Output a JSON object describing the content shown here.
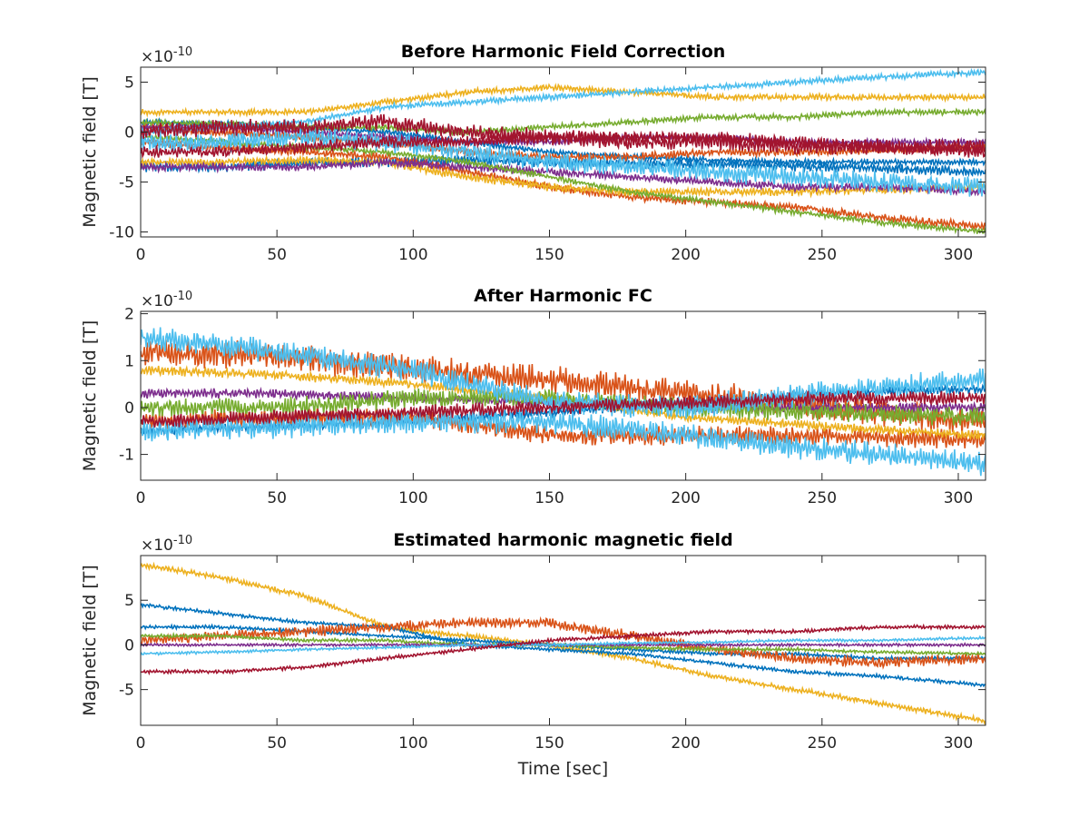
{
  "chart_data": [
    {
      "type": "line",
      "title": "Before Harmonic Field Correction",
      "ylabel": "Magnetic field [T]",
      "xlabel": "",
      "exponent_label": "×10",
      "exponent_power": "-10",
      "xlim": [
        0,
        310
      ],
      "ylim": [
        -10.5,
        6.5
      ],
      "xticks": [
        "0",
        "50",
        "100",
        "150",
        "200",
        "250",
        "300"
      ],
      "xtick_values": [
        0,
        50,
        100,
        150,
        200,
        250,
        300
      ],
      "yticks": [
        "5",
        "0",
        "-5",
        "-10"
      ],
      "ytick_values": [
        5,
        0,
        -5,
        -10
      ],
      "grid": false,
      "series": [
        {
          "color": "#0072BD",
          "x": [
            0,
            30,
            60,
            90,
            120,
            150,
            180,
            210,
            240,
            270,
            310
          ],
          "values": [
            -3.5,
            -3.5,
            -3.0,
            -3.0,
            -2.8,
            -3.0,
            -3.2,
            -3.2,
            -3.4,
            -3.6,
            -4.0
          ],
          "noise": 0.5
        },
        {
          "color": "#0072BD",
          "x": [
            0,
            30,
            60,
            90,
            120,
            150,
            180,
            210,
            240,
            270,
            310
          ],
          "values": [
            1.0,
            0.8,
            0.5,
            0.0,
            -1.0,
            -2.0,
            -2.5,
            -2.8,
            -3.0,
            -3.0,
            -3.0
          ],
          "noise": 0.3
        },
        {
          "color": "#D95319",
          "x": [
            0,
            30,
            60,
            90,
            120,
            150,
            180,
            210,
            240,
            270,
            310
          ],
          "values": [
            -1.0,
            -1.5,
            -2.0,
            -2.5,
            -4.0,
            -5.5,
            -6.5,
            -7.0,
            -7.5,
            -8.5,
            -9.5
          ],
          "noise": 0.4
        },
        {
          "color": "#D95319",
          "x": [
            0,
            30,
            60,
            90,
            120,
            150,
            180,
            210,
            240,
            270,
            310
          ],
          "values": [
            0.5,
            0.0,
            -0.5,
            -1.0,
            -2.0,
            -2.5,
            -2.5,
            -2.0,
            -2.0,
            -1.8,
            -1.5
          ],
          "noise": 0.4
        },
        {
          "color": "#EDB120",
          "x": [
            0,
            30,
            60,
            90,
            120,
            150,
            180,
            210,
            240,
            270,
            310
          ],
          "values": [
            2.0,
            2.0,
            2.0,
            3.0,
            4.0,
            4.5,
            4.0,
            3.5,
            3.5,
            3.5,
            3.5
          ],
          "noise": 0.3
        },
        {
          "color": "#EDB120",
          "x": [
            0,
            30,
            60,
            90,
            120,
            150,
            180,
            210,
            240,
            270,
            310
          ],
          "values": [
            -3.0,
            -3.0,
            -2.8,
            -3.0,
            -4.5,
            -5.5,
            -6.0,
            -6.0,
            -6.0,
            -5.8,
            -5.5
          ],
          "noise": 0.4
        },
        {
          "color": "#7E2F8E",
          "x": [
            0,
            30,
            60,
            90,
            120,
            150,
            180,
            210,
            240,
            270,
            310
          ],
          "values": [
            -3.5,
            -3.5,
            -3.5,
            -3.0,
            -3.5,
            -4.0,
            -4.5,
            -5.0,
            -5.5,
            -5.5,
            -6.0
          ],
          "noise": 0.4
        },
        {
          "color": "#7E2F8E",
          "x": [
            0,
            30,
            60,
            90,
            120,
            150,
            180,
            210,
            240,
            270,
            310
          ],
          "values": [
            0.5,
            0.5,
            0.0,
            -0.5,
            -1.0,
            -1.0,
            -0.5,
            -0.5,
            -1.0,
            -1.0,
            -1.0
          ],
          "noise": 0.3
        },
        {
          "color": "#77AC30",
          "x": [
            0,
            30,
            60,
            90,
            120,
            150,
            180,
            210,
            240,
            270,
            310
          ],
          "values": [
            -0.5,
            -1.0,
            -1.5,
            -2.0,
            -3.0,
            -4.5,
            -6.0,
            -7.0,
            -8.0,
            -9.0,
            -10.0
          ],
          "noise": 0.3
        },
        {
          "color": "#77AC30",
          "x": [
            0,
            30,
            60,
            90,
            120,
            150,
            180,
            210,
            240,
            270,
            310
          ],
          "values": [
            1.0,
            0.8,
            0.5,
            0.5,
            0.0,
            0.5,
            1.0,
            1.5,
            1.5,
            2.0,
            2.0
          ],
          "noise": 0.3
        },
        {
          "color": "#4DBEEE",
          "x": [
            0,
            30,
            60,
            90,
            120,
            150,
            180,
            210,
            240,
            270,
            310
          ],
          "values": [
            0.0,
            0.5,
            1.0,
            2.5,
            3.0,
            3.5,
            4.0,
            4.5,
            5.0,
            5.5,
            6.0
          ],
          "noise": 0.3
        },
        {
          "color": "#4DBEEE",
          "x": [
            0,
            30,
            60,
            90,
            120,
            150,
            180,
            210,
            240,
            270,
            310
          ],
          "values": [
            -1.0,
            -1.0,
            -0.5,
            -1.0,
            -2.0,
            -3.0,
            -3.5,
            -4.0,
            -4.5,
            -5.0,
            -5.5
          ],
          "noise": 1.0
        },
        {
          "color": "#A2142F",
          "x": [
            0,
            30,
            60,
            90,
            120,
            150,
            180,
            210,
            240,
            270,
            310
          ],
          "values": [
            0.0,
            0.5,
            0.5,
            1.0,
            0.0,
            -0.5,
            -1.0,
            -1.0,
            -1.5,
            -1.5,
            -1.5
          ],
          "noise": 0.8
        },
        {
          "color": "#A2142F",
          "x": [
            0,
            30,
            60,
            90,
            120,
            150,
            180,
            210,
            240,
            270,
            310
          ],
          "values": [
            -2.0,
            -2.0,
            -1.5,
            -1.0,
            -1.0,
            -0.5,
            -0.5,
            -0.5,
            -1.0,
            -1.5,
            -2.0
          ],
          "noise": 0.6
        }
      ]
    },
    {
      "type": "line",
      "title": "After Harmonic FC",
      "ylabel": "Magnetic field [T]",
      "xlabel": "",
      "exponent_label": "×10",
      "exponent_power": "-10",
      "xlim": [
        0,
        310
      ],
      "ylim": [
        -1.55,
        2.05
      ],
      "xticks": [
        "0",
        "50",
        "100",
        "150",
        "200",
        "250",
        "300"
      ],
      "xtick_values": [
        0,
        50,
        100,
        150,
        200,
        250,
        300
      ],
      "yticks": [
        "2",
        "1",
        "0",
        "-1"
      ],
      "ytick_values": [
        2,
        1,
        0,
        -1
      ],
      "grid": false,
      "series": [
        {
          "color": "#0072BD",
          "x": [
            0,
            50,
            100,
            150,
            200,
            250,
            310
          ],
          "values": [
            -0.5,
            -0.4,
            -0.3,
            -0.1,
            0.1,
            0.3,
            0.4
          ],
          "noise": 0.1
        },
        {
          "color": "#D95319",
          "x": [
            0,
            50,
            100,
            150,
            200,
            250,
            310
          ],
          "values": [
            1.2,
            1.1,
            0.8,
            0.6,
            0.3,
            0.0,
            -0.3
          ],
          "noise": 0.3
        },
        {
          "color": "#D95319",
          "x": [
            0,
            50,
            100,
            150,
            200,
            250,
            310
          ],
          "values": [
            -0.3,
            -0.2,
            -0.2,
            -0.6,
            -0.6,
            -0.6,
            -0.7
          ],
          "noise": 0.2
        },
        {
          "color": "#EDB120",
          "x": [
            0,
            50,
            100,
            150,
            200,
            250,
            310
          ],
          "values": [
            0.8,
            0.7,
            0.5,
            0.2,
            -0.2,
            -0.4,
            -0.6
          ],
          "noise": 0.1
        },
        {
          "color": "#7E2F8E",
          "x": [
            0,
            50,
            100,
            150,
            200,
            250,
            310
          ],
          "values": [
            0.3,
            0.3,
            0.2,
            0.1,
            0.0,
            0.0,
            0.0
          ],
          "noise": 0.1
        },
        {
          "color": "#77AC30",
          "x": [
            0,
            50,
            100,
            150,
            200,
            250,
            310
          ],
          "values": [
            0.0,
            0.0,
            0.2,
            0.2,
            0.0,
            -0.1,
            -0.2
          ],
          "noise": 0.2
        },
        {
          "color": "#4DBEEE",
          "x": [
            0,
            50,
            100,
            150,
            200,
            250,
            310
          ],
          "values": [
            1.5,
            1.2,
            0.8,
            0.1,
            0.0,
            0.3,
            0.6
          ],
          "noise": 0.25
        },
        {
          "color": "#4DBEEE",
          "x": [
            0,
            50,
            100,
            150,
            200,
            250,
            310
          ],
          "values": [
            -0.5,
            -0.4,
            -0.3,
            -0.3,
            -0.6,
            -0.9,
            -1.2
          ],
          "noise": 0.25
        },
        {
          "color": "#A2142F",
          "x": [
            0,
            50,
            100,
            150,
            200,
            250,
            310
          ],
          "values": [
            -0.3,
            -0.2,
            -0.1,
            0.0,
            0.1,
            0.2,
            0.2
          ],
          "noise": 0.15
        }
      ]
    },
    {
      "type": "line",
      "title": "Estimated harmonic magnetic field",
      "ylabel": "Magnetic field [T]",
      "xlabel": "Time [sec]",
      "exponent_label": "×10",
      "exponent_power": "-10",
      "xlim": [
        0,
        310
      ],
      "ylim": [
        -9,
        10
      ],
      "xticks": [
        "0",
        "50",
        "100",
        "150",
        "200",
        "250",
        "300"
      ],
      "xtick_values": [
        0,
        50,
        100,
        150,
        200,
        250,
        300
      ],
      "yticks": [
        "5",
        "0",
        "-5"
      ],
      "ytick_values": [
        5,
        0,
        -5
      ],
      "grid": false,
      "series": [
        {
          "color": "#EDB120",
          "x": [
            0,
            30,
            60,
            90,
            120,
            150,
            180,
            210,
            240,
            270,
            310
          ],
          "values": [
            9.0,
            7.5,
            5.5,
            2.0,
            1.0,
            0.0,
            -1.5,
            -3.5,
            -5.0,
            -6.5,
            -8.5
          ],
          "noise": 0.3
        },
        {
          "color": "#0072BD",
          "x": [
            0,
            30,
            60,
            90,
            120,
            150,
            180,
            210,
            240,
            270,
            310
          ],
          "values": [
            4.5,
            3.5,
            2.5,
            2.0,
            0.0,
            -0.5,
            -1.0,
            -2.0,
            -3.0,
            -3.5,
            -4.5
          ],
          "noise": 0.2
        },
        {
          "color": "#0072BD",
          "x": [
            0,
            30,
            60,
            90,
            120,
            150,
            180,
            210,
            240,
            270,
            310
          ],
          "values": [
            2.0,
            2.0,
            1.5,
            1.0,
            0.5,
            0.0,
            -0.5,
            -1.0,
            -1.0,
            -1.5,
            -1.5
          ],
          "noise": 0.2
        },
        {
          "color": "#D95319",
          "x": [
            0,
            30,
            60,
            90,
            120,
            150,
            180,
            210,
            240,
            270,
            310
          ],
          "values": [
            0.5,
            1.0,
            1.5,
            2.0,
            2.5,
            2.5,
            1.0,
            -0.5,
            -1.5,
            -2.0,
            -1.5
          ],
          "noise": 0.6
        },
        {
          "color": "#77AC30",
          "x": [
            0,
            30,
            60,
            90,
            120,
            150,
            180,
            210,
            240,
            270,
            310
          ],
          "values": [
            1.0,
            1.0,
            0.5,
            0.5,
            0.0,
            0.0,
            -0.3,
            -0.5,
            -0.5,
            -0.8,
            -1.0
          ],
          "noise": 0.2
        },
        {
          "color": "#7E2F8E",
          "x": [
            0,
            30,
            60,
            90,
            120,
            150,
            180,
            210,
            240,
            270,
            310
          ],
          "values": [
            0.0,
            0.0,
            0.0,
            0.0,
            0.0,
            0.0,
            0.0,
            0.0,
            0.0,
            0.0,
            0.0
          ],
          "noise": 0.15
        },
        {
          "color": "#4DBEEE",
          "x": [
            0,
            30,
            60,
            90,
            120,
            150,
            180,
            210,
            240,
            270,
            310
          ],
          "values": [
            -1.0,
            -0.8,
            -0.5,
            -0.3,
            0.0,
            0.0,
            0.2,
            0.3,
            0.5,
            0.5,
            0.8
          ],
          "noise": 0.15
        },
        {
          "color": "#A2142F",
          "x": [
            0,
            30,
            60,
            90,
            120,
            150,
            180,
            210,
            240,
            270,
            310
          ],
          "values": [
            -3.0,
            -3.0,
            -2.5,
            -1.5,
            -0.5,
            0.5,
            1.0,
            1.5,
            1.5,
            2.0,
            2.0
          ],
          "noise": 0.2
        }
      ]
    }
  ]
}
